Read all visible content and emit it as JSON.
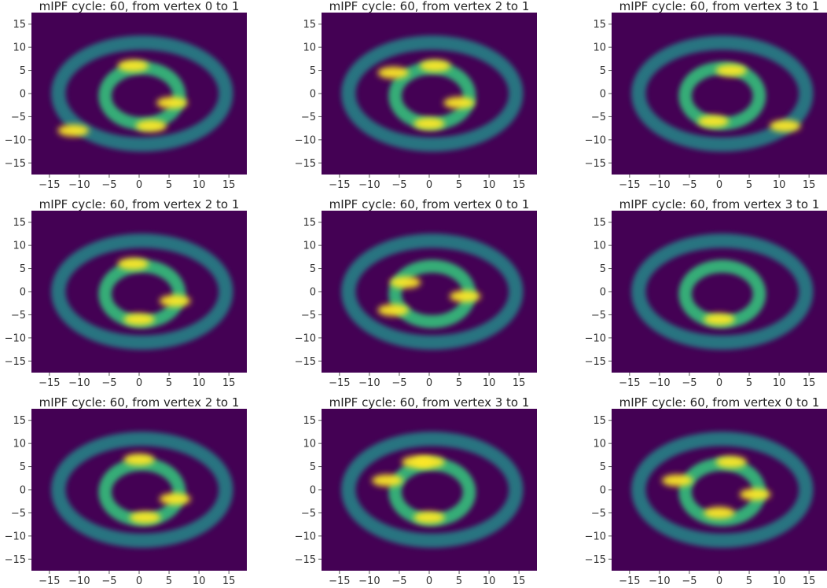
{
  "chart_data": [
    {
      "type": "heatmap",
      "title": "mIPF cycle: 60, from vertex 0 to 1",
      "x_ticks": [
        -15,
        -10,
        -5,
        0,
        5,
        10,
        15
      ],
      "y_ticks": [
        15,
        10,
        5,
        0,
        -5,
        -10,
        -15
      ],
      "xlim": [
        -18,
        18
      ],
      "ylim": [
        -17.5,
        17.5
      ],
      "colormap": "viridis",
      "background": "#440154",
      "hotspots": [
        [
          5.5,
          -2
        ],
        [
          2,
          -7
        ],
        [
          -1,
          6
        ],
        [
          -11,
          -8
        ]
      ]
    },
    {
      "type": "heatmap",
      "title": "mIPF cycle: 60, from vertex 2 to 1",
      "x_ticks": [
        -15,
        -10,
        -5,
        0,
        5,
        10,
        15
      ],
      "y_ticks": [
        15,
        10,
        5,
        0,
        -5,
        -10,
        -15
      ],
      "xlim": [
        -18,
        18
      ],
      "ylim": [
        -17.5,
        17.5
      ],
      "colormap": "viridis",
      "background": "#440154",
      "hotspots": [
        [
          -6,
          4.5
        ],
        [
          1,
          6
        ],
        [
          5,
          -2
        ],
        [
          0,
          -6.5
        ]
      ]
    },
    {
      "type": "heatmap",
      "title": "mIPF cycle: 60, from vertex 3 to 1",
      "x_ticks": [
        -15,
        -10,
        -5,
        0,
        5,
        10,
        15
      ],
      "y_ticks": [
        15,
        10,
        5,
        0,
        -5,
        -10,
        -15
      ],
      "xlim": [
        -18,
        18
      ],
      "ylim": [
        -17.5,
        17.5
      ],
      "colormap": "viridis",
      "background": "#440154",
      "hotspots": [
        [
          11,
          -7
        ],
        [
          2,
          5
        ],
        [
          -1,
          -6
        ]
      ]
    },
    {
      "type": "heatmap",
      "title": "mIPF cycle: 60, from vertex 2 to 1",
      "x_ticks": [
        -15,
        -10,
        -5,
        0,
        5,
        10,
        15
      ],
      "y_ticks": [
        15,
        10,
        5,
        0,
        -5,
        -10,
        -15
      ],
      "xlim": [
        -18,
        18
      ],
      "ylim": [
        -17.5,
        17.5
      ],
      "colormap": "viridis",
      "background": "#440154",
      "hotspots": [
        [
          0,
          -6
        ],
        [
          6,
          -2
        ],
        [
          -1,
          6
        ]
      ]
    },
    {
      "type": "heatmap",
      "title": "mIPF cycle: 60, from vertex 0 to 1",
      "x_ticks": [
        -15,
        -10,
        -5,
        0,
        5,
        10,
        15
      ],
      "y_ticks": [
        15,
        10,
        5,
        0,
        -5,
        -10,
        -15
      ],
      "xlim": [
        -18,
        18
      ],
      "ylim": [
        -17.5,
        17.5
      ],
      "colormap": "viridis",
      "background": "#440154",
      "hotspots": [
        [
          -6,
          -4
        ],
        [
          6,
          -1
        ],
        [
          -4,
          2
        ]
      ]
    },
    {
      "type": "heatmap",
      "title": "mIPF cycle: 60, from vertex 3 to 1",
      "x_ticks": [
        -15,
        -10,
        -5,
        0,
        5,
        10,
        15
      ],
      "y_ticks": [
        15,
        10,
        5,
        0,
        -5,
        -10,
        -15
      ],
      "xlim": [
        -18,
        18
      ],
      "ylim": [
        -17.5,
        17.5
      ],
      "colormap": "viridis",
      "background": "#440154",
      "hotspots": [
        [
          0,
          -6
        ]
      ]
    },
    {
      "type": "heatmap",
      "title": "mIPF cycle: 60, from vertex 2 to 1",
      "x_ticks": [
        -15,
        -10,
        -5,
        0,
        5,
        10,
        15
      ],
      "y_ticks": [
        15,
        10,
        5,
        0,
        -5,
        -10,
        -15
      ],
      "xlim": [
        -18,
        18
      ],
      "ylim": [
        -17.5,
        17.5
      ],
      "colormap": "viridis",
      "background": "#440154",
      "hotspots": [
        [
          6,
          -2
        ],
        [
          0,
          6.5
        ],
        [
          1,
          -6
        ]
      ]
    },
    {
      "type": "heatmap",
      "title": "mIPF cycle: 60, from vertex 3 to 1",
      "x_ticks": [
        -15,
        -10,
        -5,
        0,
        5,
        10,
        15
      ],
      "y_ticks": [
        15,
        10,
        5,
        0,
        -5,
        -10,
        -15
      ],
      "xlim": [
        -18,
        18
      ],
      "ylim": [
        -17.5,
        17.5
      ],
      "colormap": "viridis",
      "background": "#440154",
      "hotspots": [
        [
          0,
          -6
        ],
        [
          0,
          6
        ],
        [
          -7,
          2
        ],
        [
          -2,
          6
        ]
      ]
    },
    {
      "type": "heatmap",
      "title": "mIPF cycle: 60, from vertex 0 to 1",
      "x_ticks": [
        -15,
        -10,
        -5,
        0,
        5,
        10,
        15
      ],
      "y_ticks": [
        15,
        10,
        5,
        0,
        -5,
        -10,
        -15
      ],
      "xlim": [
        -18,
        18
      ],
      "ylim": [
        -17.5,
        17.5
      ],
      "colormap": "viridis",
      "background": "#440154",
      "hotspots": [
        [
          2,
          6
        ],
        [
          -7,
          2
        ],
        [
          6,
          -1
        ],
        [
          0,
          -5
        ]
      ]
    }
  ]
}
